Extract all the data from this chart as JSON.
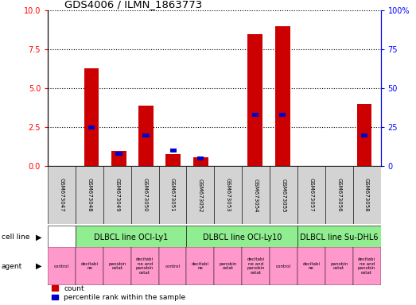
{
  "title": "GDS4006 / ILMN_1863773",
  "samples": [
    "GSM673047",
    "GSM673048",
    "GSM673049",
    "GSM673050",
    "GSM673051",
    "GSM673052",
    "GSM673053",
    "GSM673054",
    "GSM673055",
    "GSM673057",
    "GSM673056",
    "GSM673058"
  ],
  "count_values": [
    0.0,
    6.3,
    1.0,
    3.9,
    0.8,
    0.6,
    0.0,
    8.5,
    9.0,
    0.0,
    0.0,
    4.0
  ],
  "percentile_values": [
    0.0,
    25.0,
    8.0,
    20.0,
    10.0,
    5.0,
    0.0,
    33.0,
    33.0,
    0.0,
    0.0,
    20.0
  ],
  "ylim_left": [
    0,
    10
  ],
  "ylim_right": [
    0,
    100
  ],
  "yticks_left": [
    0,
    2.5,
    5,
    7.5,
    10
  ],
  "yticks_right": [
    0,
    25,
    50,
    75,
    100
  ],
  "bar_color": "#cc0000",
  "percentile_color": "#0000cc",
  "cell_line_spans": [
    {
      "label": "DLBCL line OCI-Ly1",
      "start": 1,
      "end": 5,
      "color": "#90ee90"
    },
    {
      "label": "DLBCL line OCI-Ly10",
      "start": 5,
      "end": 9,
      "color": "#90ee90"
    },
    {
      "label": "DLBCL line Su-DHL6",
      "start": 9,
      "end": 12,
      "color": "#90ee90"
    }
  ],
  "agent_labels": [
    "control",
    "decitabi\nne",
    "panobin\nostat",
    "decitabi\nne and\npanobin\nostat",
    "control",
    "decitabi\nne",
    "panobin\nostat",
    "decitabi\nne and\npanobin\nostat",
    "control",
    "decitabi\nne",
    "panobin\nostat",
    "decitabi\nne and\npanobin\nostat"
  ],
  "agent_color": "#ff99cc",
  "sample_bg_color": "#d3d3d3",
  "background_color": "#ffffff",
  "cell_line_blank_color": "#ffffff"
}
